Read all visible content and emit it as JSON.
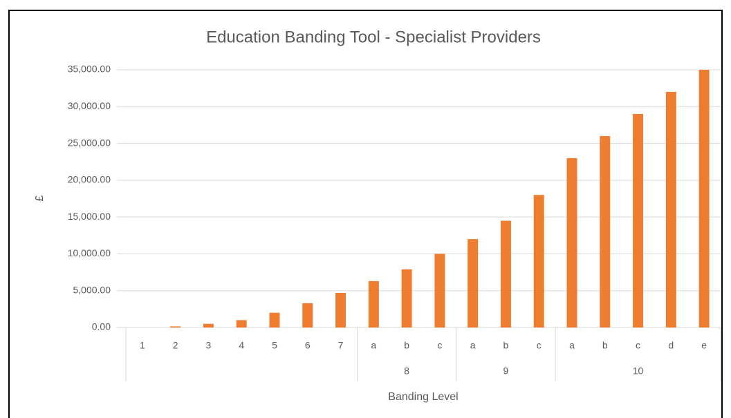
{
  "chart_data": {
    "type": "bar",
    "title": "Education Banding Tool - Specialist Providers",
    "x_label": "Banding Level",
    "y_label": "£",
    "color": "#ED7D31",
    "grid": true,
    "ylim": [
      0,
      35000
    ],
    "yticks": [
      {
        "value": 0,
        "label": "0.00"
      },
      {
        "value": 5000,
        "label": "5,000.00"
      },
      {
        "value": 10000,
        "label": "10,000.00"
      },
      {
        "value": 15000,
        "label": "15,000.00"
      },
      {
        "value": 20000,
        "label": "20,000.00"
      },
      {
        "value": 25000,
        "label": "25,000.00"
      },
      {
        "value": 30000,
        "label": "30,000.00"
      },
      {
        "value": 35000,
        "label": "35,000.00"
      }
    ],
    "groups": [
      {
        "name": null,
        "categories": [
          "1",
          "2",
          "3",
          "4",
          "5",
          "6",
          "7"
        ],
        "values": [
          0,
          150,
          500,
          1000,
          2000,
          3300,
          4700
        ]
      },
      {
        "name": "8",
        "categories": [
          "a",
          "b",
          "c"
        ],
        "values": [
          6300,
          7900,
          10000
        ]
      },
      {
        "name": "9",
        "categories": [
          "a",
          "b",
          "c"
        ],
        "values": [
          12000,
          14500,
          18000
        ]
      },
      {
        "name": "10",
        "categories": [
          "a",
          "b",
          "c",
          "d",
          "e"
        ],
        "values": [
          23000,
          26000,
          29000,
          32000,
          35000
        ]
      }
    ]
  }
}
